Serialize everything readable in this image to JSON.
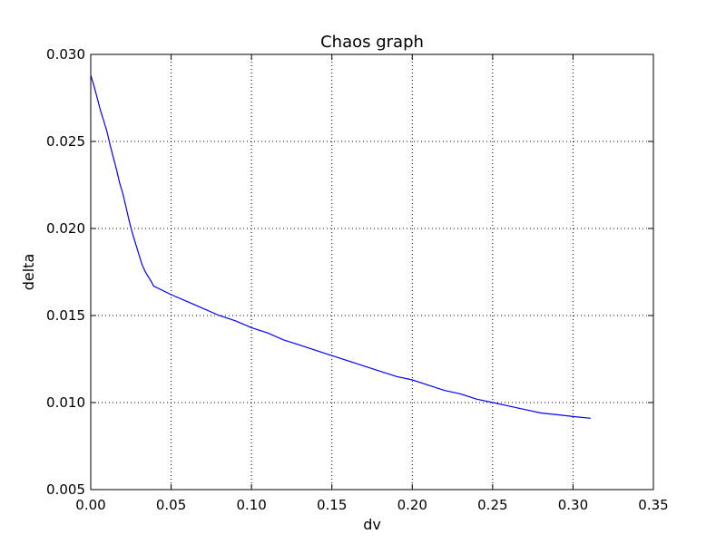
{
  "chart_data": {
    "type": "line",
    "title": "Chaos graph",
    "xlabel": "dv",
    "ylabel": "delta",
    "xlim": [
      0.0,
      0.35
    ],
    "ylim": [
      0.005,
      0.03
    ],
    "x_ticks": [
      "0.00",
      "0.05",
      "0.10",
      "0.15",
      "0.20",
      "0.25",
      "0.30",
      "0.35"
    ],
    "y_ticks": [
      "0.005",
      "0.010",
      "0.015",
      "0.020",
      "0.025",
      "0.030"
    ],
    "x_tick_values": [
      0.0,
      0.05,
      0.1,
      0.15,
      0.2,
      0.25,
      0.3,
      0.35
    ],
    "y_tick_values": [
      0.005,
      0.01,
      0.015,
      0.02,
      0.025,
      0.03
    ],
    "grid": true,
    "line_color": "#0000ff",
    "series": [
      {
        "x": [
          0.0,
          0.002,
          0.004,
          0.006,
          0.008,
          0.01,
          0.012,
          0.014,
          0.016,
          0.018,
          0.02,
          0.022,
          0.024,
          0.026,
          0.028,
          0.03,
          0.032,
          0.034,
          0.036,
          0.038,
          0.039,
          0.05,
          0.06,
          0.07,
          0.08,
          0.09,
          0.1,
          0.11,
          0.12,
          0.13,
          0.14,
          0.15,
          0.16,
          0.17,
          0.18,
          0.19,
          0.2,
          0.21,
          0.22,
          0.23,
          0.24,
          0.25,
          0.26,
          0.27,
          0.28,
          0.29,
          0.3,
          0.311
        ],
        "y": [
          0.0288,
          0.0282,
          0.0275,
          0.0268,
          0.0262,
          0.0256,
          0.0248,
          0.0241,
          0.0234,
          0.0226,
          0.022,
          0.0212,
          0.0204,
          0.0197,
          0.0191,
          0.0185,
          0.0179,
          0.0175,
          0.0172,
          0.0169,
          0.0167,
          0.0162,
          0.0158,
          0.0154,
          0.015,
          0.0147,
          0.0143,
          0.014,
          0.0136,
          0.0133,
          0.013,
          0.0127,
          0.0124,
          0.0121,
          0.0118,
          0.0115,
          0.0113,
          0.011,
          0.0107,
          0.0105,
          0.0102,
          0.01,
          0.0098,
          0.0096,
          0.0094,
          0.0093,
          0.0092,
          0.0091
        ]
      }
    ]
  }
}
